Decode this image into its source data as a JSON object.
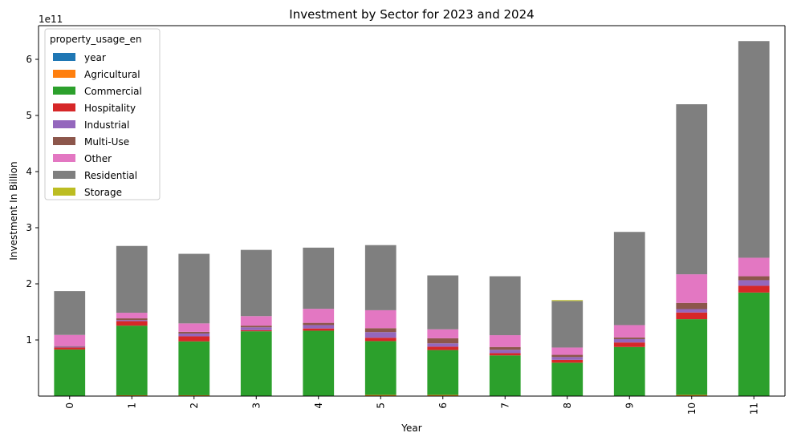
{
  "chart_data": {
    "type": "bar",
    "stacked": true,
    "title": "Investment by Sector for 2023 and 2024",
    "xlabel": "Year",
    "ylabel": "Investment In Billion",
    "y_offset_text": "1e11",
    "ylim": [
      0,
      660000000000.0
    ],
    "yticks": [
      100000000000.0,
      200000000000.0,
      300000000000.0,
      400000000000.0,
      500000000000.0,
      600000000000.0
    ],
    "ytick_labels": [
      "1",
      "2",
      "3",
      "4",
      "5",
      "6"
    ],
    "categories": [
      "0",
      "1",
      "2",
      "3",
      "4",
      "5",
      "6",
      "7",
      "8",
      "9",
      "10",
      "11"
    ],
    "legend_title": "property_usage_en",
    "legend_position": "upper-left",
    "grid": false,
    "series": [
      {
        "name": "year",
        "color": "#1f77b4",
        "values": [
          2023,
          2023,
          2023,
          2023,
          2023,
          2023,
          2023,
          2023,
          2023,
          2023,
          2023,
          2023
        ]
      },
      {
        "name": "Agricultural",
        "color": "#ff7f0e",
        "values": [
          0,
          1500000000.0,
          1500000000.0,
          500000000.0,
          500000000.0,
          2000000000.0,
          2000000000.0,
          500000000.0,
          500000000.0,
          500000000.0,
          2000000000.0,
          500000000.0
        ]
      },
      {
        "name": "Commercial",
        "color": "#2ca02c",
        "values": [
          83000000000.0,
          124000000000.0,
          96000000000.0,
          115000000000.0,
          116000000000.0,
          96000000000.0,
          80000000000.0,
          72000000000.0,
          59000000000.0,
          87000000000.0,
          135000000000.0,
          184000000000.0
        ]
      },
      {
        "name": "Hospitality",
        "color": "#d62728",
        "values": [
          3500000000.0,
          8000000000.0,
          9000000000.0,
          2000000000.0,
          4000000000.0,
          6000000000.0,
          6000000000.0,
          4000000000.0,
          5000000000.0,
          8000000000.0,
          12000000000.0,
          12000000000.0
        ]
      },
      {
        "name": "Industrial",
        "color": "#9467bd",
        "values": [
          1500000000.0,
          2000000000.0,
          5000000000.0,
          5000000000.0,
          6000000000.0,
          10000000000.0,
          6000000000.0,
          6000000000.0,
          5000000000.0,
          6000000000.0,
          6000000000.0,
          10000000000.0
        ]
      },
      {
        "name": "Multi-Use",
        "color": "#8c564b",
        "values": [
          1000000000.0,
          3000000000.0,
          3000000000.0,
          3000000000.0,
          4000000000.0,
          7000000000.0,
          9000000000.0,
          5000000000.0,
          4000000000.0,
          3000000000.0,
          11000000000.0,
          7000000000.0
        ]
      },
      {
        "name": "Other",
        "color": "#e377c2",
        "values": [
          20000000000.0,
          10000000000.0,
          15000000000.0,
          17000000000.0,
          25000000000.0,
          32000000000.0,
          16000000000.0,
          21000000000.0,
          13000000000.0,
          22000000000.0,
          51000000000.0,
          33000000000.0
        ]
      },
      {
        "name": "Residential",
        "color": "#7f7f7f",
        "values": [
          78000000000.0,
          119000000000.0,
          124000000000.0,
          118000000000.0,
          109000000000.0,
          116000000000.0,
          96000000000.0,
          105000000000.0,
          83000000000.0,
          166000000000.0,
          303000000000.0,
          386000000000.0
        ]
      },
      {
        "name": "Storage",
        "color": "#bcbd22",
        "values": [
          0,
          0,
          0,
          0,
          0,
          0,
          0,
          0,
          1500000000.0,
          0,
          0,
          0
        ]
      }
    ]
  }
}
